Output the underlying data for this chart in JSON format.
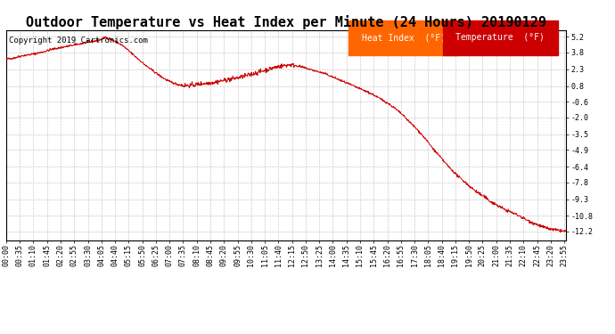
{
  "title": "Outdoor Temperature vs Heat Index per Minute (24 Hours) 20190129",
  "copyright": "Copyright 2019 Cartronics.com",
  "legend_heat_index": "Heat Index  (°F)",
  "legend_temperature": "Temperature  (°F)",
  "heat_index_color": "#FF6600",
  "temperature_color": "#CC0000",
  "line_color": "#CC0000",
  "background_color": "#FFFFFF",
  "grid_color": "#BBBBBB",
  "yticks": [
    5.2,
    3.8,
    2.3,
    0.8,
    -0.6,
    -2.0,
    -3.5,
    -4.9,
    -6.4,
    -7.8,
    -9.3,
    -10.8,
    -12.2
  ],
  "ylim": [
    -13.0,
    5.8
  ],
  "xlim_start": 0,
  "xlim_end": 1439,
  "xtick_interval": 35,
  "title_fontsize": 11,
  "copyright_fontsize": 6.5,
  "legend_fontsize": 7,
  "tick_fontsize": 6,
  "control_points": [
    [
      0,
      3.2
    ],
    [
      20,
      3.3
    ],
    [
      40,
      3.5
    ],
    [
      60,
      3.6
    ],
    [
      90,
      3.8
    ],
    [
      120,
      4.1
    ],
    [
      150,
      4.3
    ],
    [
      180,
      4.5
    ],
    [
      210,
      4.7
    ],
    [
      240,
      4.9
    ],
    [
      255,
      5.15
    ],
    [
      265,
      5.05
    ],
    [
      280,
      4.8
    ],
    [
      300,
      4.4
    ],
    [
      320,
      3.8
    ],
    [
      340,
      3.2
    ],
    [
      360,
      2.6
    ],
    [
      380,
      2.1
    ],
    [
      400,
      1.6
    ],
    [
      420,
      1.2
    ],
    [
      440,
      0.95
    ],
    [
      455,
      0.85
    ],
    [
      470,
      0.85
    ],
    [
      485,
      0.9
    ],
    [
      500,
      1.0
    ],
    [
      515,
      1.05
    ],
    [
      530,
      1.1
    ],
    [
      545,
      1.2
    ],
    [
      560,
      1.3
    ],
    [
      575,
      1.4
    ],
    [
      590,
      1.5
    ],
    [
      605,
      1.6
    ],
    [
      620,
      1.75
    ],
    [
      635,
      1.9
    ],
    [
      650,
      2.05
    ],
    [
      665,
      2.2
    ],
    [
      680,
      2.35
    ],
    [
      695,
      2.5
    ],
    [
      710,
      2.6
    ],
    [
      720,
      2.65
    ],
    [
      730,
      2.7
    ],
    [
      740,
      2.65
    ],
    [
      750,
      2.6
    ],
    [
      760,
      2.5
    ],
    [
      770,
      2.4
    ],
    [
      780,
      2.3
    ],
    [
      800,
      2.1
    ],
    [
      820,
      1.9
    ],
    [
      840,
      1.6
    ],
    [
      860,
      1.3
    ],
    [
      880,
      1.0
    ],
    [
      900,
      0.7
    ],
    [
      920,
      0.4
    ],
    [
      940,
      0.1
    ],
    [
      960,
      -0.3
    ],
    [
      980,
      -0.7
    ],
    [
      1000,
      -1.2
    ],
    [
      1020,
      -1.8
    ],
    [
      1040,
      -2.5
    ],
    [
      1060,
      -3.2
    ],
    [
      1080,
      -4.0
    ],
    [
      1100,
      -4.9
    ],
    [
      1120,
      -5.7
    ],
    [
      1140,
      -6.5
    ],
    [
      1160,
      -7.2
    ],
    [
      1180,
      -7.8
    ],
    [
      1200,
      -8.4
    ],
    [
      1220,
      -8.9
    ],
    [
      1230,
      -9.1
    ],
    [
      1240,
      -9.4
    ],
    [
      1260,
      -9.8
    ],
    [
      1280,
      -10.2
    ],
    [
      1300,
      -10.5
    ],
    [
      1320,
      -10.8
    ],
    [
      1340,
      -11.2
    ],
    [
      1360,
      -11.5
    ],
    [
      1380,
      -11.8
    ],
    [
      1400,
      -12.0
    ],
    [
      1420,
      -12.1
    ],
    [
      1439,
      -12.2
    ]
  ]
}
